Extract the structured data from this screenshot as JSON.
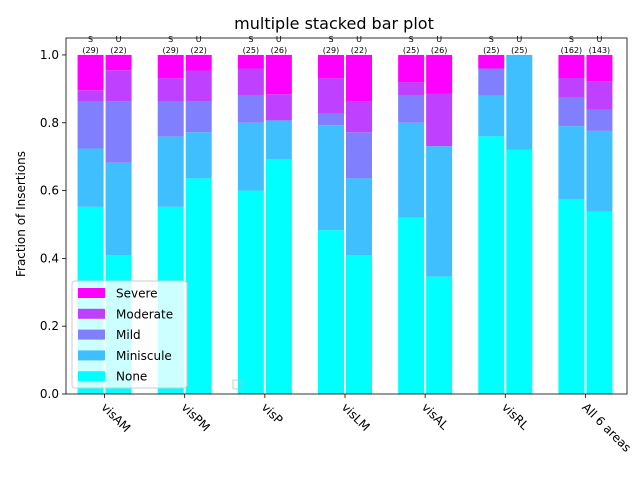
{
  "chart_data": {
    "type": "bar",
    "stacked": true,
    "title": "multiple stacked bar plot",
    "ylabel": "Fraction of Insertions",
    "xlabel": "",
    "ylim": [
      0,
      1.05
    ],
    "yticks": [
      "0.0",
      "0.2",
      "0.4",
      "0.6",
      "0.8",
      "1.0"
    ],
    "categories": [
      "visAM",
      "visPM",
      "visP",
      "visLM",
      "visAL",
      "visRL",
      "All 6 areas"
    ],
    "legend": {
      "position": "lower-left",
      "entries": [
        "Severe",
        "Moderate",
        "Mild",
        "Miniscule",
        "None"
      ]
    },
    "colors": {
      "None": "#00ffff",
      "Miniscule": "#40bfff",
      "Mild": "#8080ff",
      "Moderate": "#bf40ff",
      "Severe": "#ff00ff"
    },
    "groups": [
      {
        "category": "visAM",
        "bars": [
          {
            "label": "S",
            "count": "(29)",
            "None": 0.552,
            "Miniscule": 0.172,
            "Mild": 0.138,
            "Moderate": 0.034,
            "Severe": 0.104
          },
          {
            "label": "U",
            "count": "(22)",
            "None": 0.409,
            "Miniscule": 0.273,
            "Mild": 0.182,
            "Moderate": 0.091,
            "Severe": 0.045
          }
        ]
      },
      {
        "category": "visPM",
        "bars": [
          {
            "label": "S",
            "count": "(29)",
            "None": 0.552,
            "Miniscule": 0.207,
            "Mild": 0.103,
            "Moderate": 0.069,
            "Severe": 0.069
          },
          {
            "label": "U",
            "count": "(22)",
            "None": 0.636,
            "Miniscule": 0.136,
            "Mild": 0.091,
            "Moderate": 0.091,
            "Severe": 0.046
          }
        ]
      },
      {
        "category": "visP",
        "bars": [
          {
            "label": "S",
            "count": "(25)",
            "None": 0.6,
            "Miniscule": 0.2,
            "Mild": 0.08,
            "Moderate": 0.08,
            "Severe": 0.04
          },
          {
            "label": "U",
            "count": "(26)",
            "None": 0.692,
            "Miniscule": 0.115,
            "Mild": 0.0,
            "Moderate": 0.077,
            "Severe": 0.116
          }
        ]
      },
      {
        "category": "visLM",
        "bars": [
          {
            "label": "S",
            "count": "(29)",
            "None": 0.483,
            "Miniscule": 0.31,
            "Mild": 0.034,
            "Moderate": 0.104,
            "Severe": 0.069
          },
          {
            "label": "U",
            "count": "(22)",
            "None": 0.409,
            "Miniscule": 0.227,
            "Mild": 0.136,
            "Moderate": 0.091,
            "Severe": 0.137
          }
        ]
      },
      {
        "category": "visAL",
        "bars": [
          {
            "label": "S",
            "count": "(25)",
            "None": 0.52,
            "Miniscule": 0.28,
            "Mild": 0.08,
            "Moderate": 0.04,
            "Severe": 0.08
          },
          {
            "label": "U",
            "count": "(26)",
            "None": 0.346,
            "Miniscule": 0.385,
            "Mild": 0.0,
            "Moderate": 0.154,
            "Severe": 0.115
          }
        ]
      },
      {
        "category": "visRL",
        "bars": [
          {
            "label": "S",
            "count": "(25)",
            "None": 0.76,
            "Miniscule": 0.12,
            "Mild": 0.08,
            "Moderate": 0.0,
            "Severe": 0.04
          },
          {
            "label": "U",
            "count": "(25)",
            "None": 0.72,
            "Miniscule": 0.28,
            "Mild": 0.0,
            "Moderate": 0.0,
            "Severe": 0.0
          }
        ]
      },
      {
        "category": "All 6 areas",
        "bars": [
          {
            "label": "S",
            "count": "(162)",
            "None": 0.574,
            "Miniscule": 0.216,
            "Mild": 0.086,
            "Moderate": 0.056,
            "Severe": 0.068
          },
          {
            "label": "U",
            "count": "(143)",
            "None": 0.538,
            "Miniscule": 0.238,
            "Mild": 0.063,
            "Moderate": 0.084,
            "Severe": 0.077
          }
        ]
      }
    ]
  }
}
